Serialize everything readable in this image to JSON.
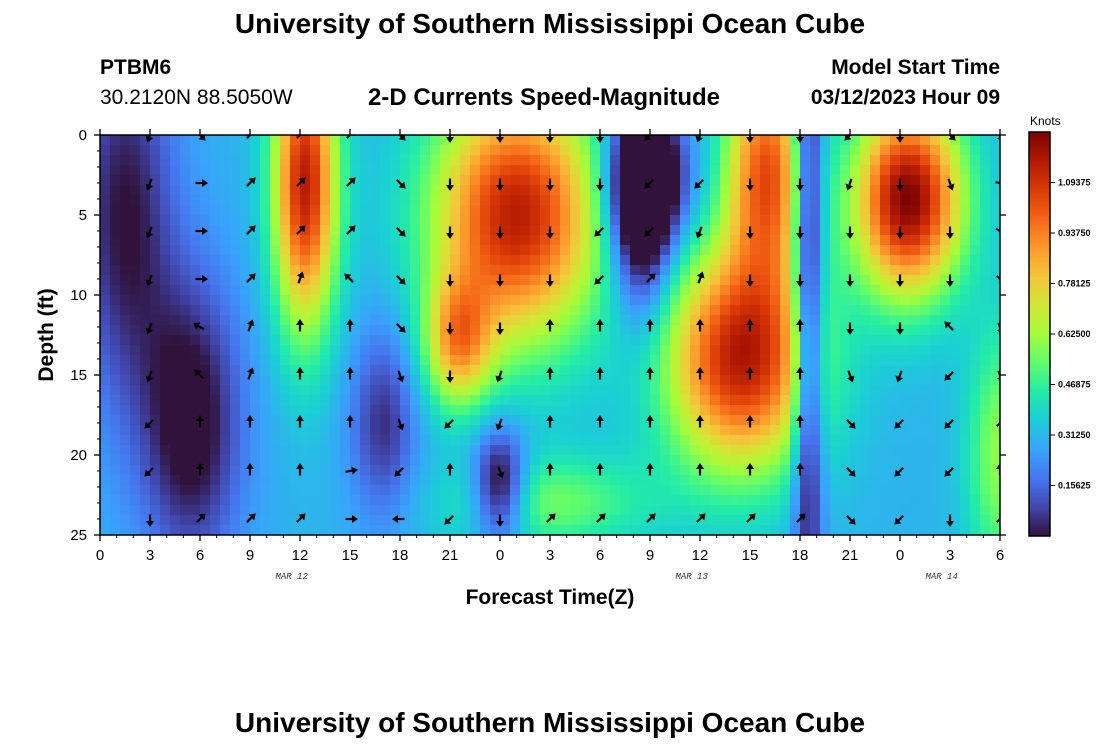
{
  "header": {
    "title": "University of Southern Mississippi Ocean Cube",
    "station_id": "PTBM6",
    "station_coords": "30.2120N  88.5050W",
    "subtitle": "2-D Currents Speed-Magnitude",
    "model_start_label": "Model Start Time",
    "model_start_value": "03/12/2023 Hour 09"
  },
  "footer": {
    "title": "University of Southern Mississippi Ocean Cube"
  },
  "chart_data": {
    "type": "heatmap",
    "title": "2-D Currents Speed-Magnitude",
    "xlabel": "Forecast Time(Z)",
    "ylabel": "Depth (ft)",
    "x_hours": [
      0,
      54
    ],
    "x_ticks": [
      "0",
      "3",
      "6",
      "9",
      "12",
      "15",
      "18",
      "21",
      "0",
      "3",
      "6",
      "9",
      "12",
      "15",
      "18",
      "21",
      "0",
      "3",
      "6"
    ],
    "date_labels": [
      {
        "text": "MAR 12",
        "hour": 11.5
      },
      {
        "text": "MAR 13",
        "hour": 35.5
      },
      {
        "text": "MAR 14",
        "hour": 50.5
      }
    ],
    "y_ticks": [
      0,
      5,
      10,
      15,
      20,
      25
    ],
    "ylim": [
      0,
      25
    ],
    "colorbar": {
      "title": "Knots",
      "tick_labels": [
        "1.09375",
        "0.93750",
        "0.78125",
        "0.62500",
        "0.46875",
        "0.31250",
        "0.15625"
      ],
      "tick_values": [
        1.09375,
        0.9375,
        0.78125,
        0.625,
        0.46875,
        0.3125,
        0.15625
      ],
      "range": [
        0,
        1.25
      ]
    },
    "arrow_hours": [
      3,
      6,
      9,
      12,
      15,
      18,
      21,
      24,
      27,
      30,
      33,
      36,
      39,
      42,
      45,
      48,
      51,
      54
    ],
    "arrow_depths": [
      0,
      3,
      6,
      9,
      12,
      15,
      18,
      21,
      24
    ],
    "arrow_directions_deg": [
      [
        200,
        135,
        45,
        45,
        45,
        135,
        180,
        180,
        180,
        180,
        225,
        200,
        180,
        180,
        225,
        180,
        135,
        160
      ],
      [
        200,
        90,
        45,
        45,
        45,
        135,
        180,
        180,
        180,
        180,
        225,
        225,
        180,
        180,
        200,
        180,
        160,
        100
      ],
      [
        200,
        90,
        45,
        45,
        45,
        135,
        180,
        180,
        180,
        225,
        225,
        200,
        180,
        180,
        180,
        180,
        180,
        120
      ],
      [
        200,
        90,
        45,
        20,
        315,
        135,
        180,
        180,
        180,
        225,
        45,
        20,
        180,
        180,
        180,
        180,
        180,
        135
      ],
      [
        200,
        300,
        20,
        0,
        0,
        135,
        180,
        180,
        0,
        0,
        0,
        0,
        0,
        0,
        180,
        180,
        315,
        160
      ],
      [
        200,
        315,
        20,
        0,
        0,
        160,
        180,
        200,
        0,
        0,
        0,
        0,
        0,
        0,
        160,
        200,
        225,
        160
      ],
      [
        225,
        0,
        0,
        0,
        0,
        160,
        225,
        200,
        0,
        0,
        0,
        0,
        0,
        0,
        135,
        225,
        225,
        45
      ],
      [
        225,
        0,
        0,
        0,
        80,
        225,
        0,
        160,
        0,
        0,
        0,
        0,
        0,
        0,
        135,
        225,
        225,
        0
      ],
      [
        180,
        45,
        45,
        45,
        90,
        270,
        225,
        180,
        45,
        45,
        45,
        45,
        45,
        45,
        135,
        225,
        180,
        45
      ]
    ]
  }
}
